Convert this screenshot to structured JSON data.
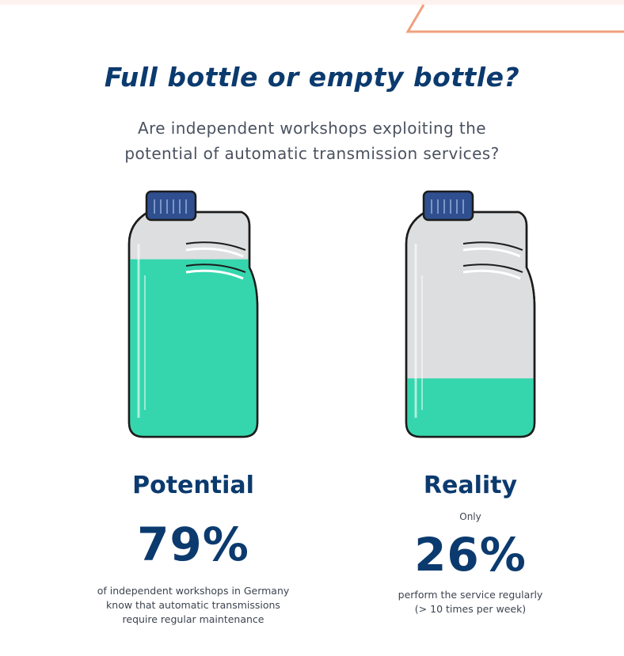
{
  "title": "Full bottle or empty bottle?",
  "subtitle": {
    "line1": "Are independent workshops exploiting the",
    "line2": "potential of automatic transmission services?"
  },
  "colors": {
    "accent_blue": "#0b3a6e",
    "liquid": "#35d6ad",
    "bottle_body": "#dcdedf",
    "cap": "#2f4f8f",
    "deco_line": "#f0a07e"
  },
  "potential": {
    "heading": "Potential",
    "value": "79%",
    "fill_fraction": 0.79,
    "caption": [
      "of independent workshops in Germany",
      "know that automatic transmissions",
      "require regular maintenance"
    ]
  },
  "reality": {
    "heading": "Reality",
    "prefix": "Only",
    "value": "26%",
    "fill_fraction": 0.26,
    "caption": [
      "perform the service regularly",
      "(> 10 times per week)"
    ]
  }
}
